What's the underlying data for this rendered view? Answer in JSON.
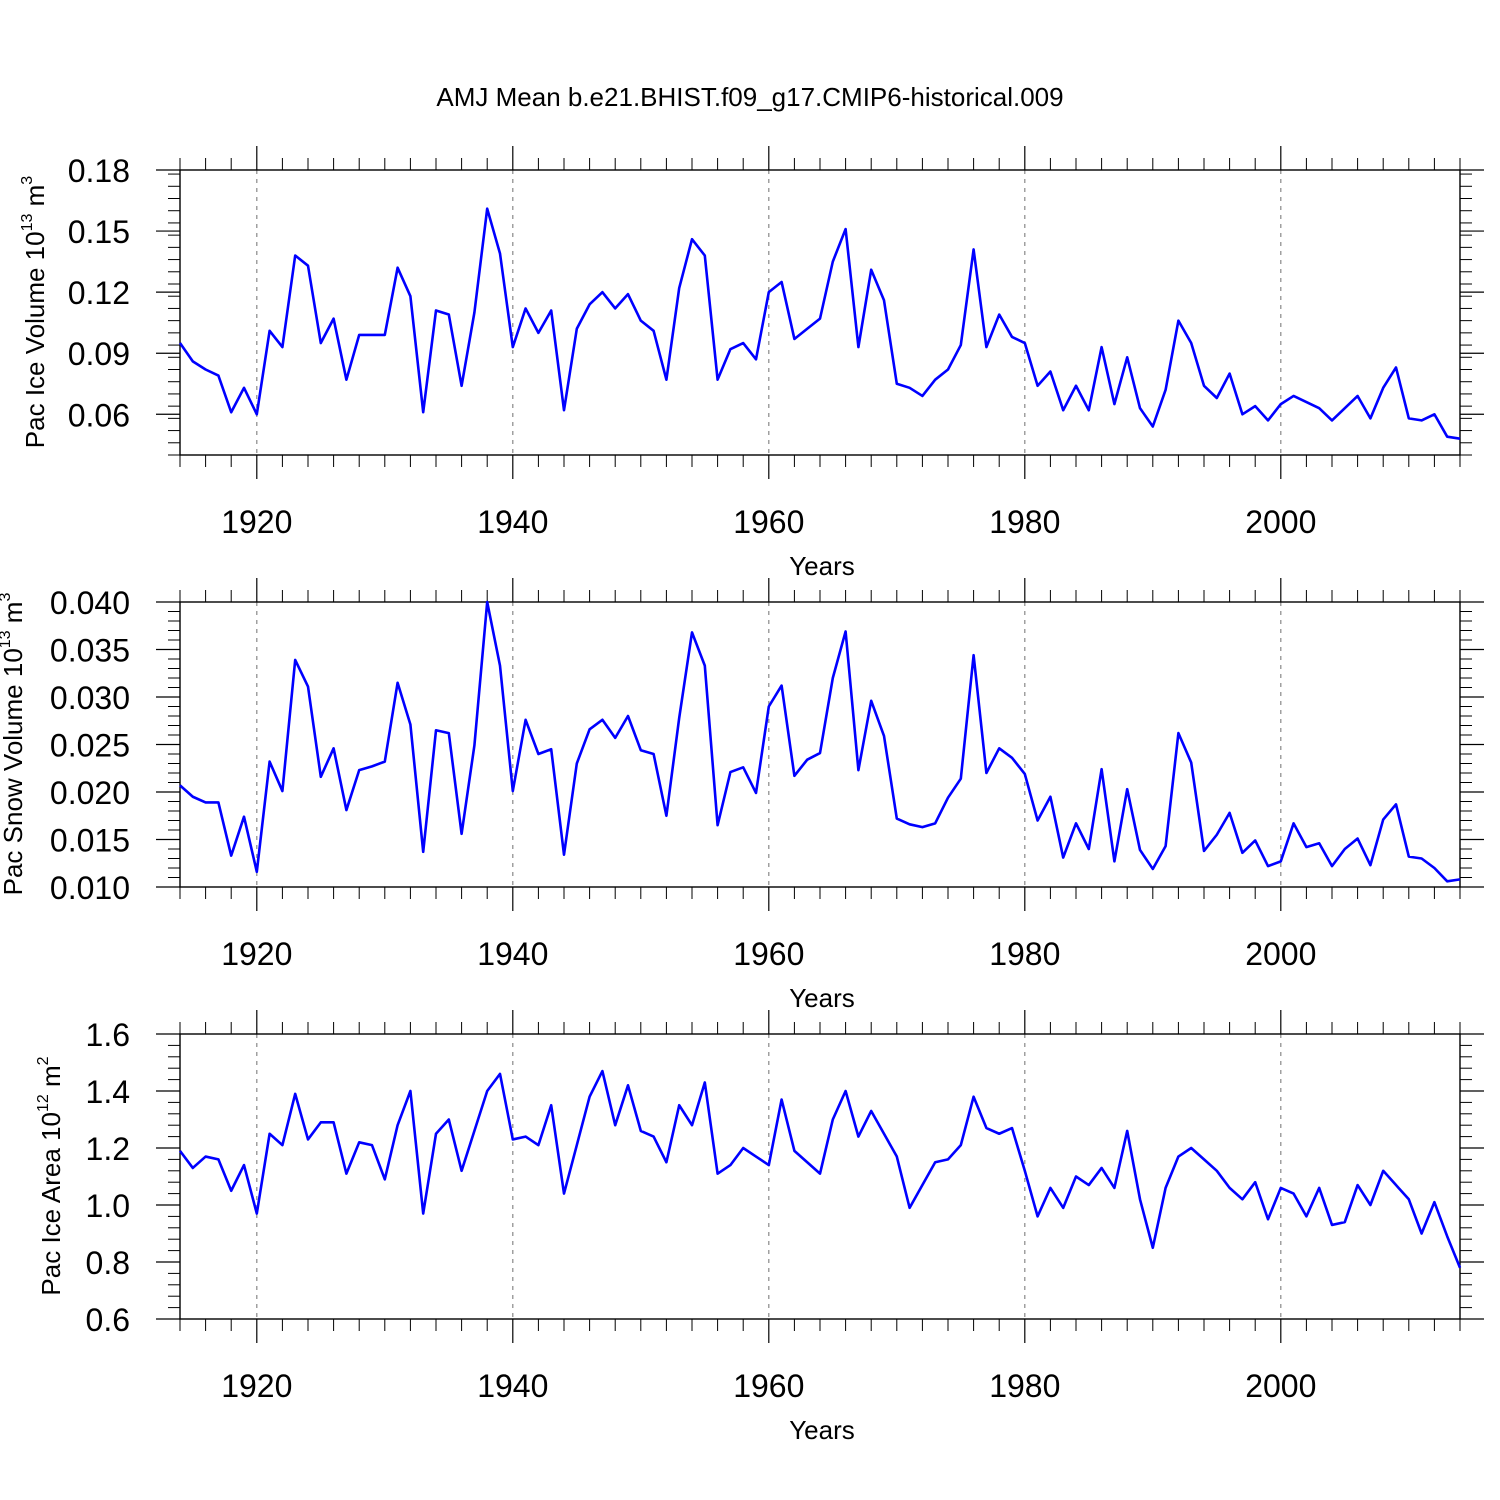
{
  "figure": {
    "title": "AMJ Mean b.e21.BHIST.f09_g17.CMIP6-historical.009",
    "line_color": "#0000ff",
    "grid_color": "#888888"
  },
  "chart_data": [
    {
      "type": "line",
      "ylabel_parts": {
        "label": "Pac Ice Volume",
        "base": "10",
        "exp": "13",
        "unit": "m",
        "unit_exp": "3"
      },
      "xlabel": "Years",
      "xlim": [
        1914,
        2014
      ],
      "ylim": [
        0.04,
        0.18
      ],
      "yticks": [
        0.06,
        0.09,
        0.12,
        0.15,
        0.18
      ],
      "ytick_labels": [
        "0.06",
        "0.09",
        "0.12",
        "0.15",
        "0.18"
      ],
      "xticks": [
        1920,
        1940,
        1960,
        1980,
        2000
      ],
      "xtick_labels": [
        "1920",
        "1940",
        "1960",
        "1980",
        "2000"
      ],
      "grid": "vertical dashed at major x ticks",
      "x_start": 1914,
      "values": [
        0.095,
        0.086,
        0.082,
        0.079,
        0.061,
        0.073,
        0.06,
        0.101,
        0.093,
        0.138,
        0.133,
        0.095,
        0.107,
        0.077,
        0.099,
        0.099,
        0.099,
        0.132,
        0.118,
        0.061,
        0.111,
        0.109,
        0.074,
        0.11,
        0.161,
        0.139,
        0.093,
        0.112,
        0.1,
        0.111,
        0.062,
        0.102,
        0.114,
        0.12,
        0.112,
        0.119,
        0.106,
        0.101,
        0.077,
        0.122,
        0.146,
        0.138,
        0.077,
        0.092,
        0.095,
        0.087,
        0.12,
        0.125,
        0.097,
        0.102,
        0.107,
        0.135,
        0.151,
        0.093,
        0.131,
        0.116,
        0.075,
        0.073,
        0.069,
        0.077,
        0.082,
        0.094,
        0.141,
        0.093,
        0.109,
        0.098,
        0.095,
        0.074,
        0.081,
        0.062,
        0.074,
        0.062,
        0.093,
        0.065,
        0.088,
        0.063,
        0.054,
        0.072,
        0.106,
        0.095,
        0.074,
        0.068,
        0.08,
        0.06,
        0.064,
        0.057,
        0.065,
        0.069,
        0.066,
        0.063,
        0.057,
        0.063,
        0.069,
        0.058,
        0.073,
        0.083,
        0.058,
        0.057,
        0.06,
        0.049,
        0.048
      ]
    },
    {
      "type": "line",
      "ylabel_parts": {
        "label": "Pac Snow Volume",
        "base": "10",
        "exp": "13",
        "unit": "m",
        "unit_exp": "3"
      },
      "xlabel": "Years",
      "xlim": [
        1914,
        2014
      ],
      "ylim": [
        0.01,
        0.04
      ],
      "yticks": [
        0.01,
        0.015,
        0.02,
        0.025,
        0.03,
        0.035,
        0.04
      ],
      "ytick_labels": [
        "0.010",
        "0.015",
        "0.020",
        "0.025",
        "0.030",
        "0.035",
        "0.040"
      ],
      "xticks": [
        1920,
        1940,
        1960,
        1980,
        2000
      ],
      "xtick_labels": [
        "1920",
        "1940",
        "1960",
        "1980",
        "2000"
      ],
      "grid": "vertical dashed at major x ticks",
      "x_start": 1914,
      "values": [
        0.0207,
        0.0195,
        0.0189,
        0.0189,
        0.0133,
        0.0174,
        0.0116,
        0.0232,
        0.0201,
        0.0339,
        0.0311,
        0.0216,
        0.0246,
        0.0181,
        0.0223,
        0.0227,
        0.0232,
        0.0315,
        0.0271,
        0.0137,
        0.0265,
        0.0262,
        0.0156,
        0.0249,
        0.04,
        0.0333,
        0.0201,
        0.0276,
        0.024,
        0.0245,
        0.0134,
        0.023,
        0.0266,
        0.0276,
        0.0257,
        0.028,
        0.0244,
        0.024,
        0.0175,
        0.0278,
        0.0368,
        0.0333,
        0.0165,
        0.0221,
        0.0226,
        0.0199,
        0.029,
        0.0312,
        0.0217,
        0.0234,
        0.0241,
        0.032,
        0.0369,
        0.0223,
        0.0296,
        0.0259,
        0.0172,
        0.0166,
        0.0163,
        0.0167,
        0.0194,
        0.0214,
        0.0344,
        0.022,
        0.0246,
        0.0236,
        0.0219,
        0.017,
        0.0195,
        0.0131,
        0.0167,
        0.014,
        0.0224,
        0.0127,
        0.0203,
        0.0139,
        0.0119,
        0.0143,
        0.0262,
        0.0231,
        0.0138,
        0.0155,
        0.0178,
        0.0136,
        0.0149,
        0.0122,
        0.0127,
        0.0167,
        0.0142,
        0.0146,
        0.0122,
        0.014,
        0.0151,
        0.0123,
        0.0171,
        0.0187,
        0.0132,
        0.013,
        0.012,
        0.0106,
        0.0108
      ]
    },
    {
      "type": "line",
      "ylabel_parts": {
        "label": "Pac Ice Area",
        "base": "10",
        "exp": "12",
        "unit": "m",
        "unit_exp": "2"
      },
      "xlabel": "Years",
      "xlim": [
        1914,
        2014
      ],
      "ylim": [
        0.6,
        1.6
      ],
      "yticks": [
        0.6,
        0.8,
        1.0,
        1.2,
        1.4,
        1.6
      ],
      "ytick_labels": [
        "0.6",
        "0.8",
        "1.0",
        "1.2",
        "1.4",
        "1.6"
      ],
      "xticks": [
        1920,
        1940,
        1960,
        1980,
        2000
      ],
      "xtick_labels": [
        "1920",
        "1940",
        "1960",
        "1980",
        "2000"
      ],
      "grid": "vertical dashed at major x ticks",
      "x_start": 1914,
      "values": [
        1.19,
        1.13,
        1.17,
        1.16,
        1.05,
        1.14,
        0.97,
        1.25,
        1.21,
        1.39,
        1.23,
        1.29,
        1.29,
        1.11,
        1.22,
        1.21,
        1.09,
        1.28,
        1.4,
        0.97,
        1.25,
        1.3,
        1.12,
        1.26,
        1.4,
        1.46,
        1.23,
        1.24,
        1.21,
        1.35,
        1.04,
        1.21,
        1.38,
        1.47,
        1.28,
        1.42,
        1.26,
        1.24,
        1.15,
        1.35,
        1.28,
        1.43,
        1.11,
        1.14,
        1.2,
        1.17,
        1.14,
        1.37,
        1.19,
        1.15,
        1.11,
        1.3,
        1.4,
        1.24,
        1.33,
        1.25,
        1.17,
        0.99,
        1.07,
        1.15,
        1.16,
        1.21,
        1.38,
        1.27,
        1.25,
        1.27,
        1.12,
        0.96,
        1.06,
        0.99,
        1.1,
        1.07,
        1.13,
        1.06,
        1.26,
        1.02,
        0.85,
        1.06,
        1.17,
        1.2,
        1.16,
        1.12,
        1.06,
        1.02,
        1.08,
        0.95,
        1.06,
        1.04,
        0.96,
        1.06,
        0.93,
        0.94,
        1.07,
        1.0,
        1.12,
        1.07,
        1.02,
        0.9,
        1.01,
        0.89,
        0.78
      ]
    }
  ]
}
